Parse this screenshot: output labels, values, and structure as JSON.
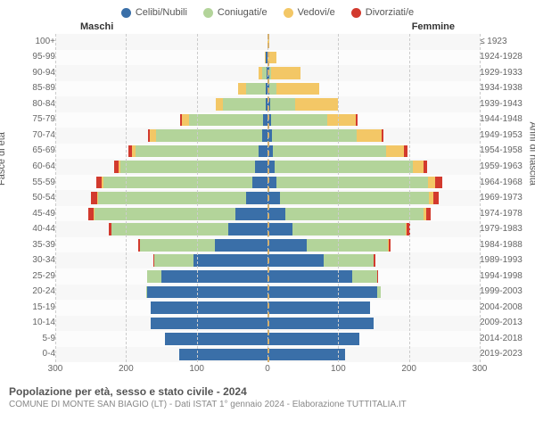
{
  "legend": [
    {
      "label": "Celibi/Nubili",
      "color": "#3a6fa8"
    },
    {
      "label": "Coniugati/e",
      "color": "#b3d49a"
    },
    {
      "label": "Vedovi/e",
      "color": "#f3c766"
    },
    {
      "label": "Divorziati/e",
      "color": "#d23a2e"
    }
  ],
  "header_male": "Maschi",
  "header_female": "Femmine",
  "axis_left_label": "Fasce di età",
  "axis_right_label": "Anni di nascita",
  "title": "Popolazione per età, sesso e stato civile - 2024",
  "subtitle": "COMUNE DI MONTE SAN BIAGIO (LT) - Dati ISTAT 1° gennaio 2024 - Elaborazione TUTTITALIA.IT",
  "colors": {
    "single": "#3a6fa8",
    "married": "#b3d49a",
    "widowed": "#f3c766",
    "divorced": "#d23a2e",
    "bg": "#f7f7f7",
    "grid": "#cccccc",
    "center": "#d4b070"
  },
  "xmax": 300,
  "xticks": [
    300,
    200,
    100,
    0,
    100,
    200,
    300
  ],
  "age_labels": [
    "100+",
    "95-99",
    "90-94",
    "85-89",
    "80-84",
    "75-79",
    "70-74",
    "65-69",
    "60-64",
    "55-59",
    "50-54",
    "45-49",
    "40-44",
    "35-39",
    "30-34",
    "25-29",
    "20-24",
    "15-19",
    "10-14",
    "5-9",
    "0-4"
  ],
  "year_labels": [
    "≤ 1923",
    "1924-1928",
    "1929-1933",
    "1934-1938",
    "1939-1943",
    "1944-1948",
    "1949-1953",
    "1954-1958",
    "1959-1963",
    "1964-1968",
    "1969-1973",
    "1974-1978",
    "1979-1983",
    "1984-1988",
    "1989-1993",
    "1994-1998",
    "1999-2003",
    "2004-2008",
    "2009-2013",
    "2014-2018",
    "2019-2023"
  ],
  "pyramid": [
    {
      "m": {
        "s": 0,
        "c": 0,
        "w": 0,
        "d": 0
      },
      "f": {
        "s": 0,
        "c": 0,
        "w": 3,
        "d": 0
      }
    },
    {
      "m": {
        "s": 2,
        "c": 0,
        "w": 2,
        "d": 0
      },
      "f": {
        "s": 0,
        "c": 0,
        "w": 12,
        "d": 0
      }
    },
    {
      "m": {
        "s": 1,
        "c": 6,
        "w": 6,
        "d": 0
      },
      "f": {
        "s": 2,
        "c": 3,
        "w": 42,
        "d": 0
      }
    },
    {
      "m": {
        "s": 2,
        "c": 28,
        "w": 12,
        "d": 0
      },
      "f": {
        "s": 3,
        "c": 10,
        "w": 60,
        "d": 0
      }
    },
    {
      "m": {
        "s": 3,
        "c": 60,
        "w": 10,
        "d": 0
      },
      "f": {
        "s": 4,
        "c": 35,
        "w": 60,
        "d": 0
      }
    },
    {
      "m": {
        "s": 6,
        "c": 105,
        "w": 10,
        "d": 2
      },
      "f": {
        "s": 5,
        "c": 80,
        "w": 40,
        "d": 2
      }
    },
    {
      "m": {
        "s": 8,
        "c": 150,
        "w": 8,
        "d": 3
      },
      "f": {
        "s": 6,
        "c": 120,
        "w": 35,
        "d": 3
      }
    },
    {
      "m": {
        "s": 12,
        "c": 175,
        "w": 5,
        "d": 5
      },
      "f": {
        "s": 8,
        "c": 160,
        "w": 25,
        "d": 5
      }
    },
    {
      "m": {
        "s": 18,
        "c": 190,
        "w": 3,
        "d": 6
      },
      "f": {
        "s": 10,
        "c": 195,
        "w": 15,
        "d": 6
      }
    },
    {
      "m": {
        "s": 22,
        "c": 210,
        "w": 2,
        "d": 8
      },
      "f": {
        "s": 12,
        "c": 215,
        "w": 10,
        "d": 10
      }
    },
    {
      "m": {
        "s": 30,
        "c": 210,
        "w": 1,
        "d": 8
      },
      "f": {
        "s": 18,
        "c": 210,
        "w": 6,
        "d": 8
      }
    },
    {
      "m": {
        "s": 45,
        "c": 200,
        "w": 1,
        "d": 7
      },
      "f": {
        "s": 25,
        "c": 195,
        "w": 4,
        "d": 7
      }
    },
    {
      "m": {
        "s": 55,
        "c": 165,
        "w": 0,
        "d": 5
      },
      "f": {
        "s": 35,
        "c": 160,
        "w": 2,
        "d": 5
      }
    },
    {
      "m": {
        "s": 75,
        "c": 105,
        "w": 0,
        "d": 3
      },
      "f": {
        "s": 55,
        "c": 115,
        "w": 1,
        "d": 3
      }
    },
    {
      "m": {
        "s": 105,
        "c": 55,
        "w": 0,
        "d": 2
      },
      "f": {
        "s": 80,
        "c": 70,
        "w": 0,
        "d": 3
      }
    },
    {
      "m": {
        "s": 150,
        "c": 20,
        "w": 0,
        "d": 0
      },
      "f": {
        "s": 120,
        "c": 35,
        "w": 0,
        "d": 1
      }
    },
    {
      "m": {
        "s": 170,
        "c": 2,
        "w": 0,
        "d": 0
      },
      "f": {
        "s": 155,
        "c": 5,
        "w": 0,
        "d": 0
      }
    },
    {
      "m": {
        "s": 165,
        "c": 0,
        "w": 0,
        "d": 0
      },
      "f": {
        "s": 145,
        "c": 0,
        "w": 0,
        "d": 0
      }
    },
    {
      "m": {
        "s": 165,
        "c": 0,
        "w": 0,
        "d": 0
      },
      "f": {
        "s": 150,
        "c": 0,
        "w": 0,
        "d": 0
      }
    },
    {
      "m": {
        "s": 145,
        "c": 0,
        "w": 0,
        "d": 0
      },
      "f": {
        "s": 130,
        "c": 0,
        "w": 0,
        "d": 0
      }
    },
    {
      "m": {
        "s": 125,
        "c": 0,
        "w": 0,
        "d": 0
      },
      "f": {
        "s": 110,
        "c": 0,
        "w": 0,
        "d": 0
      }
    }
  ]
}
